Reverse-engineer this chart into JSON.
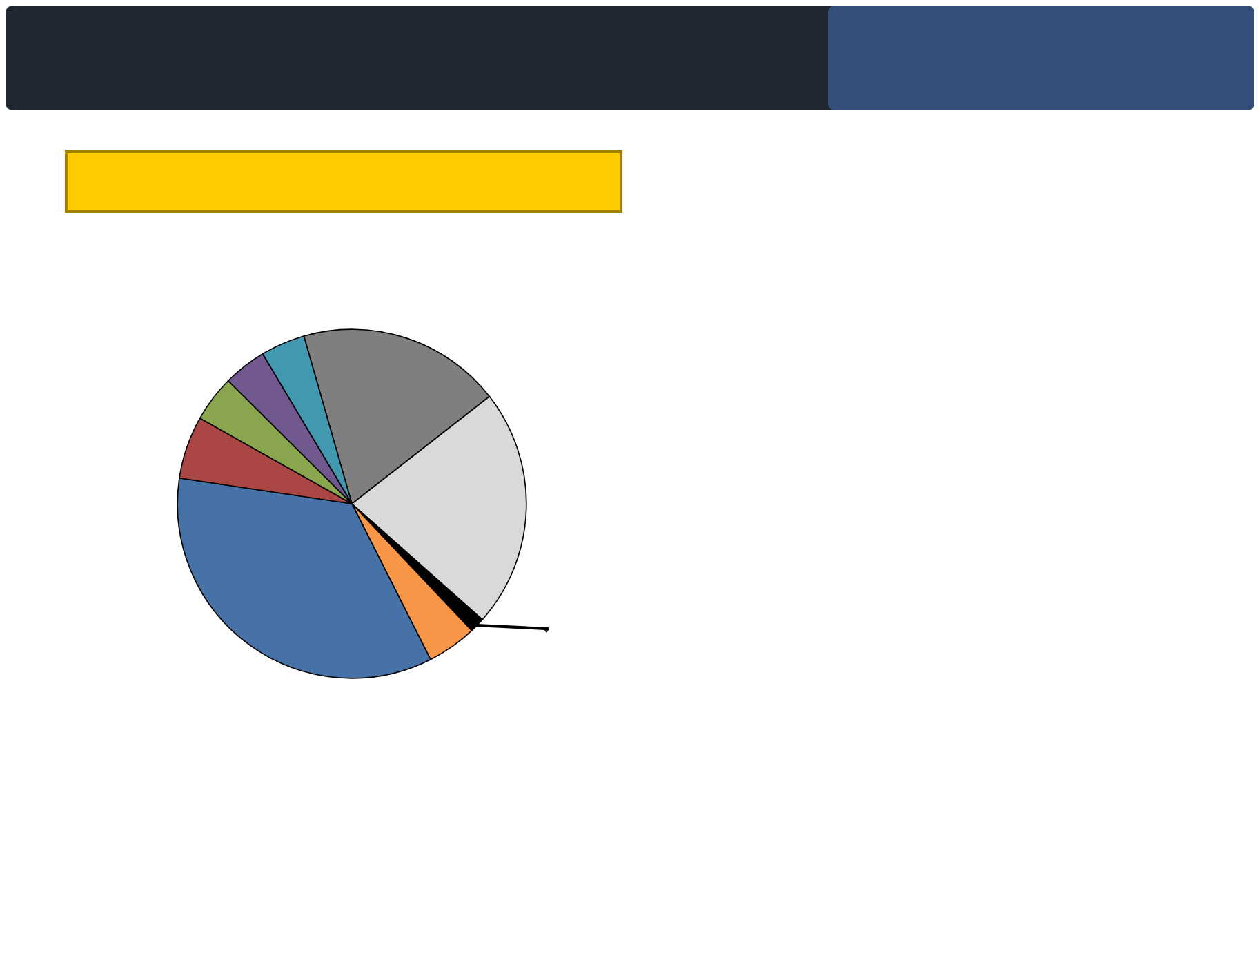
{
  "chart_data": {
    "type": "pie",
    "categories": [
      null,
      null,
      null,
      null,
      null,
      null,
      null,
      null,
      null
    ],
    "values": [
      18.9,
      22.1,
      1.4,
      4.6,
      34.8,
      5.8,
      4.3,
      4.0,
      4.1
    ],
    "colors": [
      "#7f7f7f",
      "#d9d9d9",
      "#000000",
      "#f79646",
      "#4672a8",
      "#aa4643",
      "#89a54e",
      "#71588f",
      "#4198af"
    ]
  }
}
